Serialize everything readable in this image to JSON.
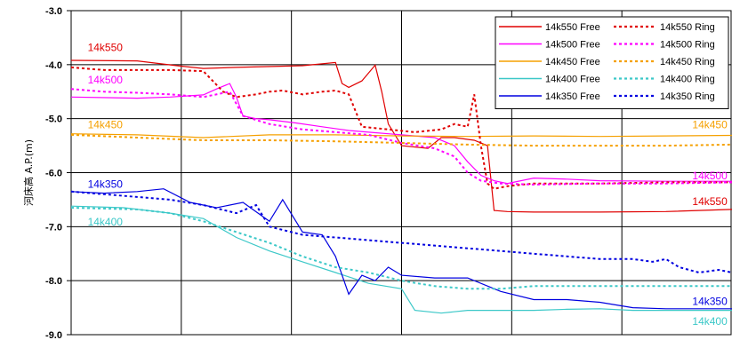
{
  "chart_data": {
    "type": "line",
    "title": "",
    "xlabel": "",
    "ylabel": "河床高 A.P.(m)",
    "ylim": [
      -9.0,
      -3.0
    ],
    "yticks": [
      -3.0,
      -4.0,
      -5.0,
      -6.0,
      -7.0,
      -8.0,
      -9.0
    ],
    "ytick_labels": [
      "-3.0",
      "-4.0",
      "-5.0",
      "-6.0",
      "-7.0",
      "-8.0",
      "-9.0"
    ],
    "xlim": [
      0,
      100
    ],
    "x_gridlines": 6,
    "grid": true,
    "legend_position": "top-right",
    "series": [
      {
        "name": "14k550 Free",
        "color": "#e00000",
        "dash": "solid",
        "x": [
          0,
          10,
          16,
          20,
          25,
          35,
          40,
          41,
          42,
          44,
          46,
          47,
          48,
          50,
          54,
          56,
          58,
          61,
          63,
          64,
          66,
          70,
          80,
          90,
          100
        ],
        "y": [
          -3.92,
          -3.93,
          -4.02,
          -4.07,
          -4.05,
          -4.02,
          -3.96,
          -4.35,
          -4.42,
          -4.3,
          -4.01,
          -4.5,
          -5.1,
          -5.5,
          -5.55,
          -5.35,
          -5.35,
          -5.4,
          -5.5,
          -6.7,
          -6.72,
          -6.73,
          -6.73,
          -6.72,
          -6.68
        ]
      },
      {
        "name": "14k500 Free",
        "color": "#ff00ff",
        "dash": "solid",
        "x": [
          0,
          10,
          15,
          20,
          22,
          24,
          25,
          26,
          28,
          30,
          34,
          38,
          42,
          45,
          48,
          50,
          55,
          58,
          60,
          62,
          64,
          66,
          70,
          75,
          80,
          90,
          100
        ],
        "y": [
          -4.6,
          -4.62,
          -4.6,
          -4.56,
          -4.45,
          -4.35,
          -4.6,
          -4.95,
          -5.0,
          -5.02,
          -5.08,
          -5.15,
          -5.22,
          -5.25,
          -5.28,
          -5.3,
          -5.35,
          -5.5,
          -5.8,
          -6.05,
          -6.15,
          -6.2,
          -6.1,
          -6.12,
          -6.15,
          -6.16,
          -6.16
        ]
      },
      {
        "name": "14k450 Free",
        "color": "#f5a000",
        "dash": "solid",
        "x": [
          0,
          10,
          20,
          30,
          40,
          50,
          60,
          70,
          80,
          90,
          100
        ],
        "y": [
          -5.28,
          -5.3,
          -5.35,
          -5.3,
          -5.3,
          -5.32,
          -5.33,
          -5.32,
          -5.33,
          -5.32,
          -5.31
        ]
      },
      {
        "name": "14k400 Free",
        "color": "#3cc8c8",
        "dash": "solid",
        "x": [
          0,
          8,
          15,
          20,
          25,
          30,
          35,
          40,
          45,
          50,
          52,
          56,
          60,
          65,
          70,
          75,
          80,
          85,
          90,
          100
        ],
        "y": [
          -6.62,
          -6.65,
          -6.75,
          -6.85,
          -7.2,
          -7.45,
          -7.65,
          -7.85,
          -8.05,
          -8.15,
          -8.55,
          -8.6,
          -8.55,
          -8.55,
          -8.55,
          -8.53,
          -8.52,
          -8.55,
          -8.55,
          -8.55
        ]
      },
      {
        "name": "14k350 Free",
        "color": "#0000e0",
        "dash": "solid",
        "x": [
          0,
          5,
          10,
          14,
          18,
          22,
          26,
          30,
          32,
          35,
          38,
          40,
          42,
          44,
          46,
          48,
          50,
          55,
          60,
          65,
          70,
          75,
          80,
          85,
          90,
          95,
          100
        ],
        "y": [
          -6.35,
          -6.38,
          -6.35,
          -6.3,
          -6.55,
          -6.65,
          -6.55,
          -6.9,
          -6.5,
          -7.1,
          -7.15,
          -7.55,
          -8.25,
          -7.9,
          -8.0,
          -7.75,
          -7.9,
          -7.95,
          -7.95,
          -8.2,
          -8.35,
          -8.35,
          -8.4,
          -8.5,
          -8.52,
          -8.52,
          -8.52
        ]
      },
      {
        "name": "14k550 Ring",
        "color": "#e00000",
        "dash": "dotted",
        "x": [
          0,
          5,
          10,
          15,
          20,
          23,
          25,
          28,
          30,
          32,
          35,
          38,
          40,
          42,
          44,
          48,
          52,
          56,
          58,
          60,
          61,
          62,
          63,
          64,
          66,
          70,
          80,
          90,
          100
        ],
        "y": [
          -4.05,
          -4.1,
          -4.1,
          -4.1,
          -4.12,
          -4.5,
          -4.6,
          -4.55,
          -4.5,
          -4.48,
          -4.55,
          -4.5,
          -4.48,
          -4.55,
          -5.15,
          -5.2,
          -5.25,
          -5.2,
          -5.1,
          -5.15,
          -4.55,
          -5.5,
          -6.2,
          -6.3,
          -6.25,
          -6.2,
          -6.2,
          -6.18,
          -6.18
        ]
      },
      {
        "name": "14k500 Ring",
        "color": "#ff00ff",
        "dash": "dotted",
        "x": [
          0,
          5,
          10,
          15,
          20,
          24,
          26,
          30,
          35,
          40,
          45,
          50,
          55,
          58,
          60,
          62,
          65,
          70,
          80,
          90,
          100
        ],
        "y": [
          -4.45,
          -4.5,
          -4.52,
          -4.55,
          -4.6,
          -4.5,
          -4.95,
          -5.1,
          -5.2,
          -5.25,
          -5.3,
          -5.45,
          -5.55,
          -5.7,
          -6.0,
          -6.15,
          -6.2,
          -6.22,
          -6.2,
          -6.2,
          -6.18
        ]
      },
      {
        "name": "14k450 Ring",
        "color": "#f5a000",
        "dash": "dotted",
        "x": [
          0,
          10,
          20,
          30,
          40,
          50,
          60,
          70,
          80,
          90,
          100
        ],
        "y": [
          -5.3,
          -5.35,
          -5.4,
          -5.4,
          -5.42,
          -5.45,
          -5.48,
          -5.5,
          -5.5,
          -5.5,
          -5.48
        ]
      },
      {
        "name": "14k400 Ring",
        "color": "#3cc8c8",
        "dash": "dotted",
        "x": [
          0,
          10,
          15,
          20,
          25,
          30,
          35,
          40,
          45,
          50,
          55,
          60,
          65,
          70,
          80,
          90,
          100
        ],
        "y": [
          -6.65,
          -6.68,
          -6.75,
          -6.9,
          -7.1,
          -7.3,
          -7.55,
          -7.75,
          -7.85,
          -8.0,
          -8.1,
          -8.15,
          -8.15,
          -8.1,
          -8.1,
          -8.1,
          -8.1
        ]
      },
      {
        "name": "14k350 Ring",
        "color": "#0000e0",
        "dash": "dotted",
        "x": [
          0,
          5,
          10,
          15,
          20,
          25,
          28,
          30,
          35,
          40,
          45,
          50,
          55,
          60,
          65,
          70,
          75,
          80,
          85,
          88,
          90,
          92,
          95,
          98,
          100
        ],
        "y": [
          -6.35,
          -6.4,
          -6.45,
          -6.5,
          -6.6,
          -6.75,
          -6.6,
          -7.0,
          -7.15,
          -7.2,
          -7.25,
          -7.3,
          -7.35,
          -7.4,
          -7.45,
          -7.5,
          -7.55,
          -7.6,
          -7.6,
          -7.65,
          -7.6,
          -7.75,
          -7.85,
          -7.8,
          -7.85
        ]
      }
    ],
    "annotations": [
      {
        "text": "14k550",
        "color": "#e00000",
        "x": 2.5,
        "y": -3.75
      },
      {
        "text": "14k500",
        "color": "#ff00ff",
        "x": 2.5,
        "y": -4.35
      },
      {
        "text": "14k450",
        "color": "#f5a000",
        "x": 2.5,
        "y": -5.18
      },
      {
        "text": "14k350",
        "color": "#0000e0",
        "x": 2.5,
        "y": -6.28
      },
      {
        "text": "14k400",
        "color": "#3cc8c8",
        "x": 2.5,
        "y": -6.98
      },
      {
        "text": "14k450",
        "color": "#f5a000",
        "x": 94.0,
        "y": -5.18
      },
      {
        "text": "14k500",
        "color": "#ff00ff",
        "x": 94.0,
        "y": -6.12
      },
      {
        "text": "14k550",
        "color": "#e00000",
        "x": 94.0,
        "y": -6.6
      },
      {
        "text": "14k350",
        "color": "#0000e0",
        "x": 94.0,
        "y": -8.45
      },
      {
        "text": "14k400",
        "color": "#3cc8c8",
        "x": 94.0,
        "y": -8.82
      }
    ]
  }
}
